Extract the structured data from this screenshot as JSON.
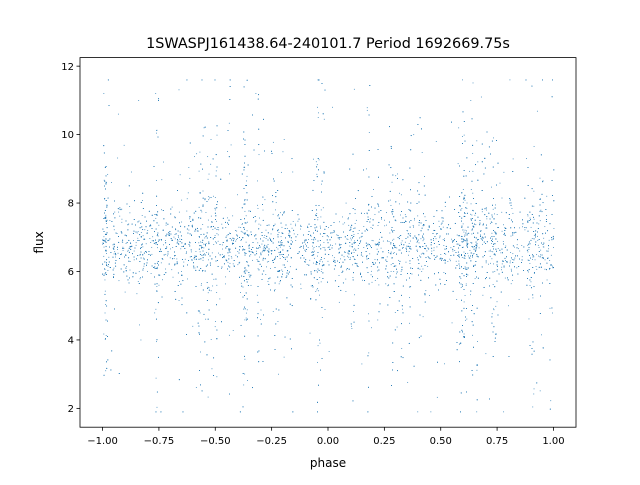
{
  "chart_data": {
    "type": "scatter",
    "title": "1SWASPJ161438.64-240101.7 Period 1692669.75s",
    "xlabel": "phase",
    "ylabel": "flux",
    "xlim": [
      -1.1,
      1.1
    ],
    "ylim": [
      1.45,
      12.25
    ],
    "x_ticks": [
      -1.0,
      -0.75,
      -0.5,
      -0.25,
      0.0,
      0.25,
      0.5,
      0.75,
      1.0
    ],
    "x_tick_labels": [
      "−1.00",
      "−0.75",
      "−0.50",
      "−0.25",
      "0.00",
      "0.25",
      "0.50",
      "0.75",
      "1.00"
    ],
    "y_ticks": [
      2,
      4,
      6,
      8,
      10,
      12
    ],
    "y_tick_labels": [
      "2",
      "4",
      "6",
      "8",
      "10",
      "12"
    ],
    "grid": false,
    "legend": "none",
    "marker_color": "#1f77b4",
    "series": [
      {
        "points_description_note": "",
        "x": [
          -1.0,
          -0.98,
          -0.96,
          -0.95,
          -0.93,
          -0.9,
          -0.88,
          -0.86,
          -0.84,
          -0.83,
          -0.8,
          -0.78,
          -0.75,
          -0.73,
          -0.7,
          -0.68,
          -0.65,
          -0.62,
          -0.6,
          -0.57,
          -0.55,
          -0.53,
          -0.5,
          -0.48,
          -0.45,
          -0.43,
          -0.4,
          -0.38,
          -0.35,
          -0.32,
          -0.3,
          -0.28,
          -0.25,
          -0.22,
          -0.2,
          -0.18,
          -0.15,
          -0.12,
          -0.1,
          -0.08,
          -0.05,
          -0.03,
          0.0,
          0.02,
          0.05,
          0.08,
          0.1,
          0.12,
          0.15,
          0.17,
          0.2,
          0.22,
          0.25,
          0.28,
          0.3,
          0.33,
          0.35,
          0.38,
          0.4,
          0.43,
          0.45,
          0.48,
          0.5,
          0.52,
          0.55,
          0.58,
          0.6,
          0.62,
          0.65,
          0.68,
          0.7,
          0.72,
          0.75,
          0.78,
          0.8,
          0.82,
          0.85,
          0.88,
          0.9,
          0.92,
          0.95,
          0.97,
          1.0
        ],
        "y": [
          6.8,
          7.5,
          8.6,
          6.1,
          10.6,
          5.4,
          7.9,
          6.6,
          11.0,
          4.0,
          7.2,
          6.9,
          5.6,
          9.2,
          6.4,
          7.6,
          6.0,
          8.3,
          4.4,
          7.0,
          10.2,
          6.5,
          7.8,
          5.2,
          6.9,
          9.7,
          6.2,
          7.4,
          5.9,
          11.2,
          4.6,
          8.1,
          6.6,
          3.0,
          9.5,
          6.3,
          7.1,
          5.5,
          6.8,
          4.2,
          7.3,
          6.0,
          6.7,
          10.8,
          5.1,
          8.0,
          6.4,
          7.7,
          3.3,
          9.0,
          6.9,
          5.8,
          7.5,
          6.2,
          8.8,
          4.9,
          7.2,
          10.0,
          6.1,
          7.6,
          5.3,
          9.8,
          6.5,
          7.9,
          4.5,
          6.8,
          8.4,
          5.9,
          7.0,
          11.1,
          3.6,
          7.4,
          6.3,
          8.9,
          5.0,
          7.7,
          6.6,
          9.3,
          5.7,
          7.1,
          6.4,
          8.2,
          6.7
        ]
      }
    ]
  }
}
